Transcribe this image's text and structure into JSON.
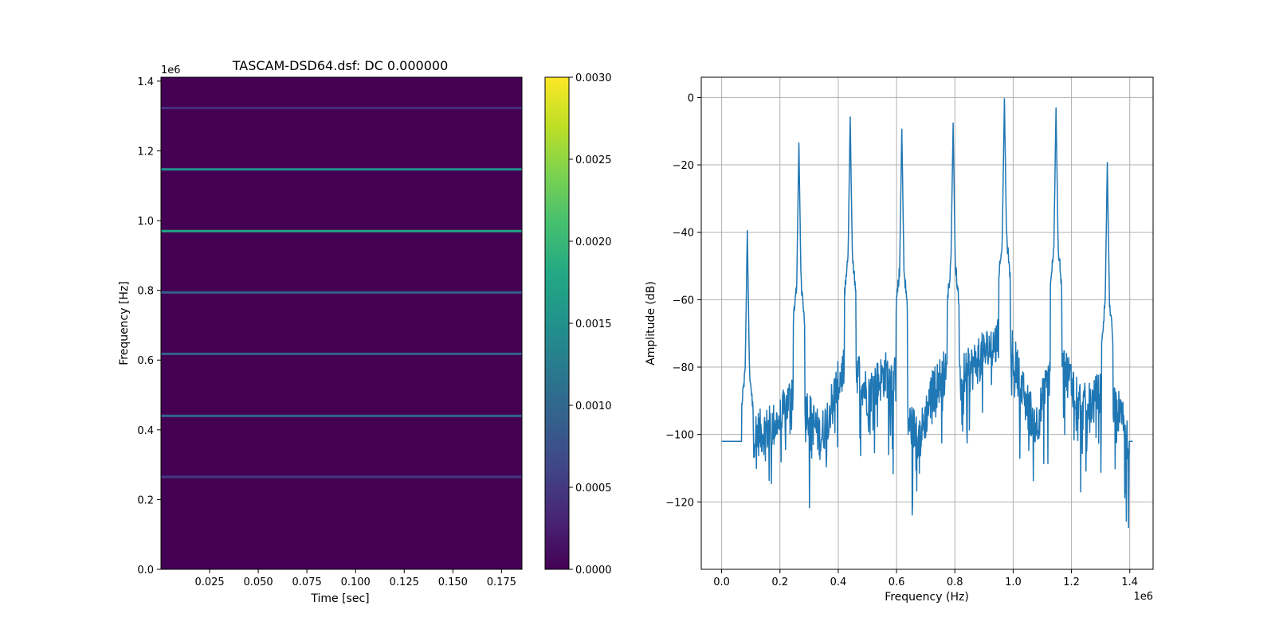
{
  "chart_data": [
    {
      "type": "heatmap",
      "title": "TASCAM-DSD64.dsf: DC 0.000000",
      "xlabel": "Time [sec]",
      "ylabel": "Frequency [Hz]",
      "y_offset_label": "1e6",
      "xlim": [
        0.0,
        0.1855
      ],
      "ylim": [
        0.0,
        1.4112
      ],
      "xticks": [
        0.025,
        0.05,
        0.075,
        0.1,
        0.125,
        0.15,
        0.175
      ],
      "xtick_labels": [
        "0.025",
        "0.050",
        "0.075",
        "0.100",
        "0.125",
        "0.150",
        "0.175"
      ],
      "yticks": [
        0.0,
        0.2,
        0.4,
        0.6,
        0.8,
        1.0,
        1.2,
        1.4
      ],
      "ytick_labels": [
        "0.0",
        "0.2",
        "0.4",
        "0.6",
        "0.8",
        "1.0",
        "1.2",
        "1.4"
      ],
      "background_color": "#440154",
      "colorbar": {
        "range": [
          0.0,
          0.003
        ],
        "ticks": [
          0.0,
          0.0005,
          0.001,
          0.0015,
          0.002,
          0.0025,
          0.003
        ],
        "tick_labels": [
          "0.0000",
          "0.0005",
          "0.0010",
          "0.0015",
          "0.0020",
          "0.0025",
          "0.0030"
        ],
        "colormap": "viridis"
      },
      "bands": [
        {
          "frequency": 0.265,
          "value": 0.0005
        },
        {
          "frequency": 0.44,
          "value": 0.001
        },
        {
          "frequency": 0.618,
          "value": 0.0009
        },
        {
          "frequency": 0.794,
          "value": 0.0009
        },
        {
          "frequency": 0.97,
          "value": 0.0018
        },
        {
          "frequency": 1.147,
          "value": 0.0015
        },
        {
          "frequency": 1.323,
          "value": 0.0004
        }
      ]
    },
    {
      "type": "line",
      "title": "",
      "xlabel": "Frequency (Hz)",
      "ylabel": "Amplitude (dB)",
      "x_offset_label": "1e6",
      "xlim": [
        -0.07,
        1.48
      ],
      "ylim": [
        -140,
        6
      ],
      "xticks": [
        0.0,
        0.2,
        0.4,
        0.6,
        0.8,
        1.0,
        1.2,
        1.4
      ],
      "xtick_labels": [
        "0.0",
        "0.2",
        "0.4",
        "0.6",
        "0.8",
        "1.0",
        "1.2",
        "1.4"
      ],
      "yticks": [
        0,
        -20,
        -40,
        -60,
        -80,
        -100,
        -120
      ],
      "ytick_labels": [
        "0",
        "−20",
        "−40",
        "−60",
        "−80",
        "−100",
        "−120"
      ],
      "grid": true,
      "line_color": "#1f77b4",
      "noise_floor": -102,
      "peaks": [
        {
          "frequency": 0.088,
          "amplitude": -39.5
        },
        {
          "frequency": 0.265,
          "amplitude": -13.5
        },
        {
          "frequency": 0.441,
          "amplitude": -5.8
        },
        {
          "frequency": 0.618,
          "amplitude": -9.4
        },
        {
          "frequency": 0.794,
          "amplitude": -7.6
        },
        {
          "frequency": 0.97,
          "amplitude": -0.3
        },
        {
          "frequency": 1.147,
          "amplitude": -3.1
        },
        {
          "frequency": 1.323,
          "amplitude": -19.3
        }
      ],
      "envelope": {
        "x": [
          0.0,
          0.08,
          0.1,
          0.15,
          0.2,
          0.24,
          0.26,
          0.3,
          0.34,
          0.38,
          0.42,
          0.46,
          0.5,
          0.56,
          0.6,
          0.64,
          0.68,
          0.72,
          0.76,
          0.8,
          0.84,
          0.88,
          0.92,
          0.96,
          1.0,
          1.04,
          1.08,
          1.12,
          1.16,
          1.2,
          1.24,
          1.28,
          1.32,
          1.36,
          1.4,
          1.41
        ],
        "y": [
          -102,
          -102,
          -100,
          -99,
          -96,
          -88,
          -84,
          -94,
          -101,
          -90,
          -80,
          -80,
          -88,
          -82,
          -84,
          -96,
          -101,
          -88,
          -82,
          -84,
          -82,
          -78,
          -74,
          -72,
          -76,
          -90,
          -97,
          -84,
          -78,
          -84,
          -92,
          -90,
          -84,
          -93,
          -102,
          -102
        ]
      }
    }
  ]
}
